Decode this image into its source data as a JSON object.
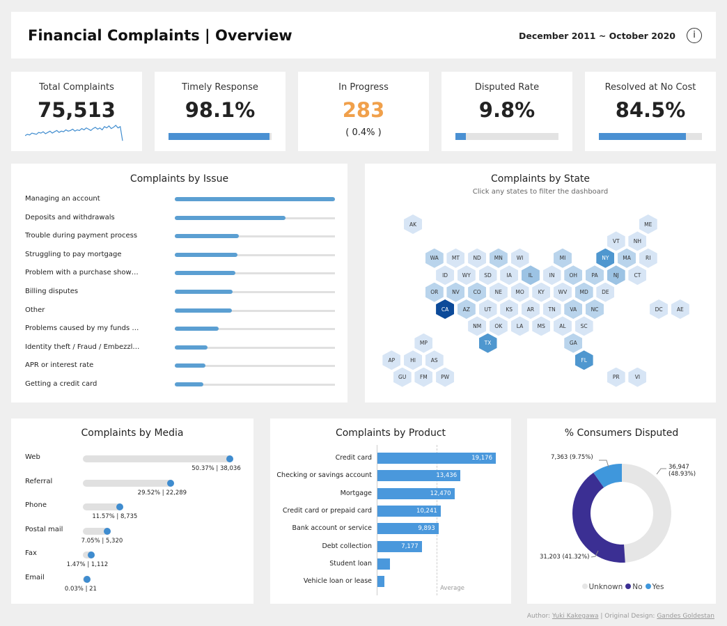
{
  "header": {
    "title": "Financial Complaints | Overview",
    "date_range": "December 2011 ~ October 2020",
    "info_icon": "i"
  },
  "kpis": [
    {
      "label": "Total Complaints",
      "value": "75,513",
      "sparkline": [
        10,
        12,
        11,
        14,
        13,
        12,
        15,
        14,
        16,
        13,
        15,
        17,
        14,
        16,
        18,
        15,
        17,
        16,
        19,
        17,
        18,
        20,
        17,
        19,
        18,
        21,
        19,
        22,
        20,
        18,
        21,
        23,
        20,
        22,
        19,
        24,
        22,
        25,
        21,
        23,
        26,
        22,
        24,
        2
      ]
    },
    {
      "label": "Timely Response",
      "value": "98.1%",
      "progress": 0.981
    },
    {
      "label": "In Progress",
      "value": "283",
      "sub": "( 0.4% )",
      "value_color": "#f0a04b"
    },
    {
      "label": "Disputed Rate",
      "value": "9.8%",
      "progress": 0.098
    },
    {
      "label": "Resolved at No Cost",
      "value": "84.5%",
      "progress": 0.845
    }
  ],
  "issues": {
    "title": "Complaints by Issue",
    "items": [
      {
        "label": "Managing an account",
        "relative": 1.0
      },
      {
        "label": "Deposits and withdrawals",
        "relative": 0.69
      },
      {
        "label": "Trouble during payment process",
        "relative": 0.4
      },
      {
        "label": "Struggling to pay mortgage",
        "relative": 0.39
      },
      {
        "label": "Problem with a purchase show…",
        "relative": 0.38
      },
      {
        "label": "Billing disputes",
        "relative": 0.36
      },
      {
        "label": "Other",
        "relative": 0.355
      },
      {
        "label": "Problems caused by my funds …",
        "relative": 0.275
      },
      {
        "label": "Identity theft / Fraud / Embezzl…",
        "relative": 0.205
      },
      {
        "label": "APR or interest rate",
        "relative": 0.19
      },
      {
        "label": "Getting a credit card",
        "relative": 0.18
      }
    ]
  },
  "states": {
    "title": "Complaints by State",
    "subtitle": "Click any states to filter the dashboard",
    "colors": [
      "#d7e5f5",
      "#b9d4ec",
      "#9cc3e4",
      "#4f97cf",
      "#0c4a99"
    ],
    "items": [
      [
        "AK",
        0,
        3,
        0
      ],
      [
        "ME",
        0,
        25,
        0
      ],
      [
        "VT",
        1,
        22,
        0
      ],
      [
        "NH",
        1,
        24,
        0
      ],
      [
        "WA",
        2,
        5,
        1
      ],
      [
        "MT",
        2,
        7,
        0
      ],
      [
        "ND",
        2,
        9,
        0
      ],
      [
        "MN",
        2,
        11,
        1
      ],
      [
        "WI",
        2,
        13,
        0
      ],
      [
        "MI",
        2,
        17,
        1
      ],
      [
        "NY",
        2,
        21,
        3
      ],
      [
        "MA",
        2,
        23,
        1
      ],
      [
        "RI",
        2,
        25,
        0
      ],
      [
        "ID",
        3,
        6,
        0
      ],
      [
        "WY",
        3,
        8,
        0
      ],
      [
        "SD",
        3,
        10,
        0
      ],
      [
        "IA",
        3,
        12,
        0
      ],
      [
        "IL",
        3,
        14,
        2
      ],
      [
        "IN",
        3,
        16,
        0
      ],
      [
        "OH",
        3,
        18,
        1
      ],
      [
        "PA",
        3,
        20,
        1
      ],
      [
        "NJ",
        3,
        22,
        2
      ],
      [
        "CT",
        3,
        24,
        0
      ],
      [
        "OR",
        4,
        5,
        1
      ],
      [
        "NV",
        4,
        7,
        1
      ],
      [
        "CO",
        4,
        9,
        1
      ],
      [
        "NE",
        4,
        11,
        0
      ],
      [
        "MO",
        4,
        13,
        0
      ],
      [
        "KY",
        4,
        15,
        0
      ],
      [
        "WV",
        4,
        17,
        0
      ],
      [
        "MD",
        4,
        19,
        1
      ],
      [
        "DE",
        4,
        21,
        0
      ],
      [
        "CA",
        5,
        6,
        4
      ],
      [
        "AZ",
        5,
        8,
        1
      ],
      [
        "UT",
        5,
        10,
        0
      ],
      [
        "KS",
        5,
        12,
        0
      ],
      [
        "AR",
        5,
        14,
        0
      ],
      [
        "TN",
        5,
        16,
        0
      ],
      [
        "VA",
        5,
        18,
        1
      ],
      [
        "NC",
        5,
        20,
        1
      ],
      [
        "DC",
        5,
        26,
        0
      ],
      [
        "AE",
        5,
        28,
        0
      ],
      [
        "NM",
        6,
        9,
        0
      ],
      [
        "OK",
        6,
        11,
        0
      ],
      [
        "LA",
        6,
        13,
        0
      ],
      [
        "MS",
        6,
        15,
        0
      ],
      [
        "AL",
        6,
        17,
        0
      ],
      [
        "SC",
        6,
        19,
        0
      ],
      [
        "MP",
        7,
        4,
        0
      ],
      [
        "TX",
        7,
        10,
        3
      ],
      [
        "GA",
        7,
        18,
        1
      ],
      [
        "AP",
        8,
        1,
        0
      ],
      [
        "HI",
        8,
        3,
        0
      ],
      [
        "AS",
        8,
        5,
        0
      ],
      [
        "FL",
        8,
        19,
        3
      ],
      [
        "GU",
        9,
        2,
        0
      ],
      [
        "FM",
        9,
        4,
        0
      ],
      [
        "PW",
        9,
        6,
        0
      ],
      [
        "PR",
        9,
        22,
        0
      ],
      [
        "VI",
        9,
        24,
        0
      ]
    ]
  },
  "media": {
    "title": "Complaints by Media",
    "items": [
      {
        "label": "Web",
        "pct": 50.37,
        "text": "50.37% | 38,036"
      },
      {
        "label": "Referral",
        "pct": 29.52,
        "text": "29.52% | 22,289"
      },
      {
        "label": "Phone",
        "pct": 11.57,
        "text": "11.57% | 8,735"
      },
      {
        "label": "Postal mail",
        "pct": 7.05,
        "text": "7.05% | 5,320"
      },
      {
        "label": "Fax",
        "pct": 1.47,
        "text": "1.47% | 1,112"
      },
      {
        "label": "Email",
        "pct": 0.03,
        "text": "0.03% | 21"
      }
    ]
  },
  "product": {
    "title": "Complaints by Product",
    "average_label": "Average",
    "average": 9600,
    "items": [
      {
        "label": "Credit card",
        "value": 19176,
        "text": "19,176"
      },
      {
        "label": "Checking or savings account",
        "value": 13436,
        "text": "13,436"
      },
      {
        "label": "Mortgage",
        "value": 12470,
        "text": "12,470"
      },
      {
        "label": "Credit card or prepaid card",
        "value": 10241,
        "text": "10,241"
      },
      {
        "label": "Bank account or service",
        "value": 9893,
        "text": "9,893"
      },
      {
        "label": "Debt collection",
        "value": 7177,
        "text": "7,177"
      },
      {
        "label": "Student loan",
        "value": 2000,
        "text": ""
      },
      {
        "label": "Vehicle loan or lease",
        "value": 1100,
        "text": ""
      }
    ]
  },
  "disputed": {
    "title": "% Consumers Disputed",
    "slices": [
      {
        "name": "Unknown",
        "value": 36947,
        "label": "36,947",
        "pct": "(48.93%)",
        "color": "#e6e6e6"
      },
      {
        "name": "No",
        "value": 31203,
        "label": "31,203 (41.32%)",
        "color": "#3b2f93"
      },
      {
        "name": "Yes",
        "value": 7363,
        "label": "7,363 (9.75%)",
        "color": "#3f97dc"
      }
    ]
  },
  "footer": {
    "author_prefix": "Author:",
    "author": "Yuki Kakegawa",
    "sep": "| Original Design:",
    "designer": "Gandes Goldestan"
  }
}
